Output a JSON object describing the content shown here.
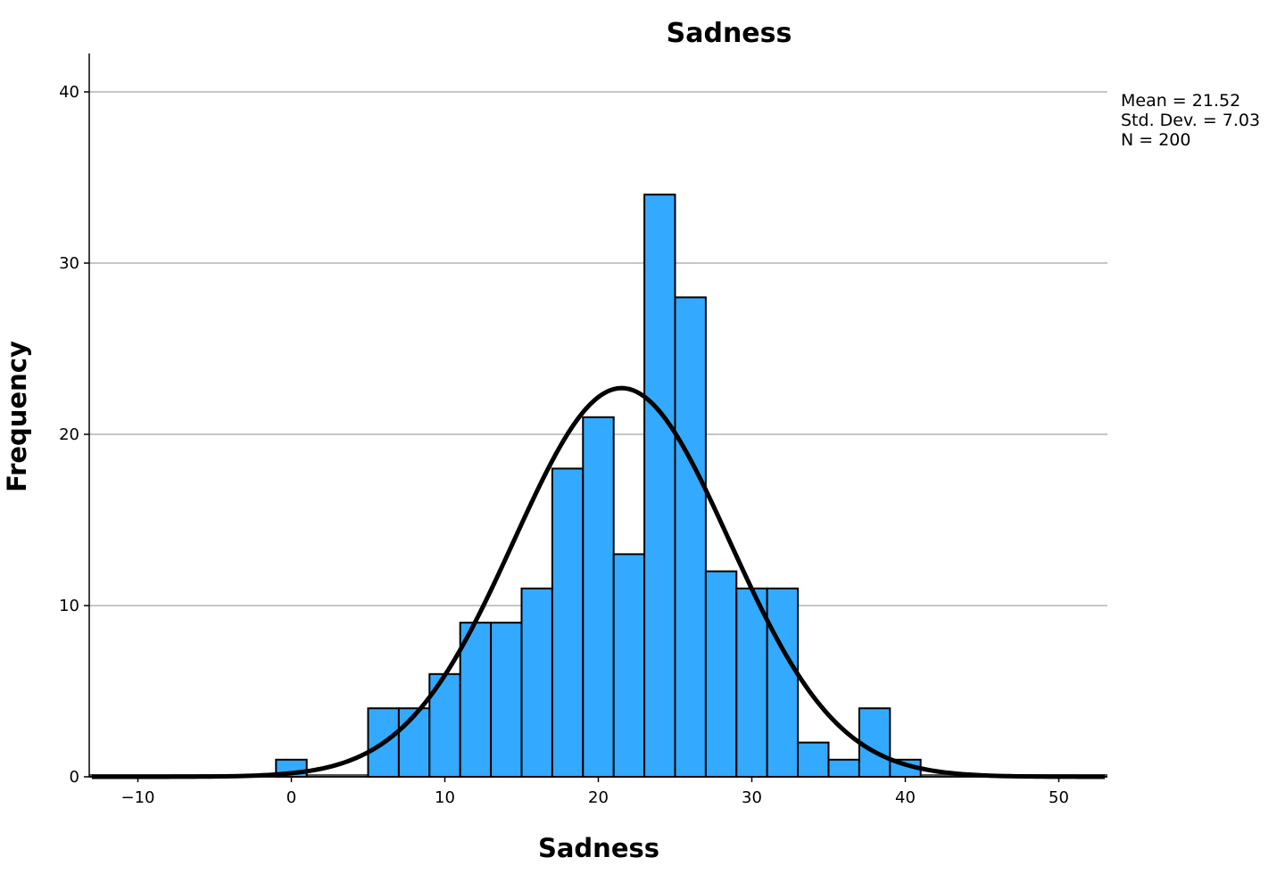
{
  "chart_data": {
    "type": "bar",
    "title": "Sadness",
    "xlabel": "Sadness",
    "ylabel": "Frequency",
    "xlim": [
      -13,
      53
    ],
    "ylim": [
      0,
      42
    ],
    "x_ticks": [
      -10,
      0,
      10,
      20,
      30,
      40,
      50
    ],
    "y_ticks": [
      0,
      10,
      20,
      30,
      40
    ],
    "grid": true,
    "bin_width": 2,
    "bins": [
      {
        "start": -1,
        "end": 1,
        "count": 1
      },
      {
        "start": 5,
        "end": 7,
        "count": 4
      },
      {
        "start": 7,
        "end": 9,
        "count": 4
      },
      {
        "start": 9,
        "end": 11,
        "count": 6
      },
      {
        "start": 11,
        "end": 13,
        "count": 9
      },
      {
        "start": 13,
        "end": 15,
        "count": 9
      },
      {
        "start": 15,
        "end": 17,
        "count": 11
      },
      {
        "start": 17,
        "end": 19,
        "count": 18
      },
      {
        "start": 19,
        "end": 21,
        "count": 21
      },
      {
        "start": 21,
        "end": 23,
        "count": 13
      },
      {
        "start": 23,
        "end": 25,
        "count": 34
      },
      {
        "start": 25,
        "end": 27,
        "count": 28
      },
      {
        "start": 27,
        "end": 29,
        "count": 12
      },
      {
        "start": 29,
        "end": 31,
        "count": 11
      },
      {
        "start": 31,
        "end": 33,
        "count": 11
      },
      {
        "start": 33,
        "end": 35,
        "count": 2
      },
      {
        "start": 35,
        "end": 37,
        "count": 1
      },
      {
        "start": 37,
        "end": 39,
        "count": 4
      },
      {
        "start": 39,
        "end": 41,
        "count": 1
      }
    ],
    "normal_curve": {
      "mean": 21.52,
      "sd": 7.03,
      "n": 200
    },
    "stats_text": [
      "Mean = 21.52",
      "Std. Dev. = 7.03",
      "N = 200"
    ],
    "colors": {
      "bar": "#33aaff",
      "bar_border": "#000000",
      "curve": "#000000",
      "grid": "#b3b3b3"
    }
  }
}
